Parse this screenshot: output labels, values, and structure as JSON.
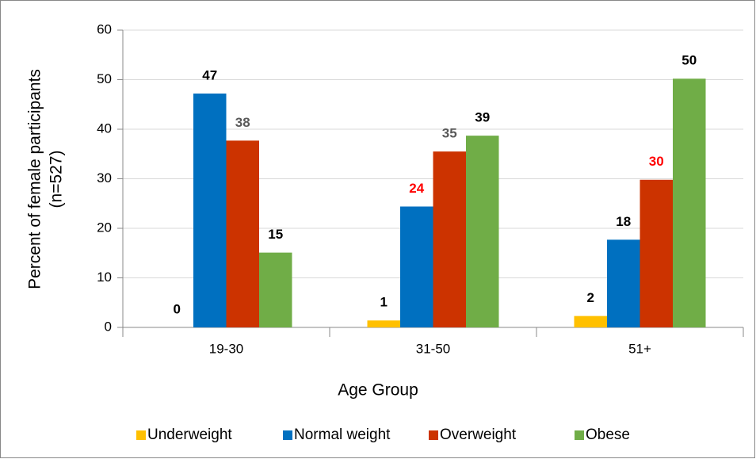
{
  "chart_data": {
    "type": "bar",
    "xlabel": "Age Group",
    "ylabel": [
      "Percent of female participants",
      "(n=527)"
    ],
    "categories": [
      "19-30",
      "31-50",
      "51+"
    ],
    "series": [
      {
        "name": "Underweight",
        "color": "#ffc000",
        "values": [
          0,
          1.4,
          2.3
        ],
        "value_labels": [
          "0",
          "1",
          "2"
        ],
        "label_colors": [
          "#000000",
          "#000000",
          "#000000"
        ]
      },
      {
        "name": "Normal weight",
        "color": "#0070c0",
        "values": [
          47.2,
          24.4,
          17.7
        ],
        "value_labels": [
          "47",
          "24",
          "18"
        ],
        "label_colors": [
          "#000000",
          "#ff0000",
          "#000000"
        ]
      },
      {
        "name": "Overweight",
        "color": "#cc3300",
        "values": [
          37.7,
          35.5,
          29.8
        ],
        "value_labels": [
          "38",
          "35",
          "30"
        ],
        "label_colors": [
          "#595959",
          "#595959",
          "#ff0000"
        ]
      },
      {
        "name": "Obese",
        "color": "#70ad47",
        "values": [
          15.1,
          38.7,
          50.2
        ],
        "value_labels": [
          "15",
          "39",
          "50"
        ],
        "label_colors": [
          "#000000",
          "#000000",
          "#000000"
        ]
      }
    ],
    "ylim": [
      0,
      60
    ],
    "yticks": [
      0,
      10,
      20,
      30,
      40,
      50,
      60
    ],
    "grid": true,
    "legend": "bottom"
  }
}
